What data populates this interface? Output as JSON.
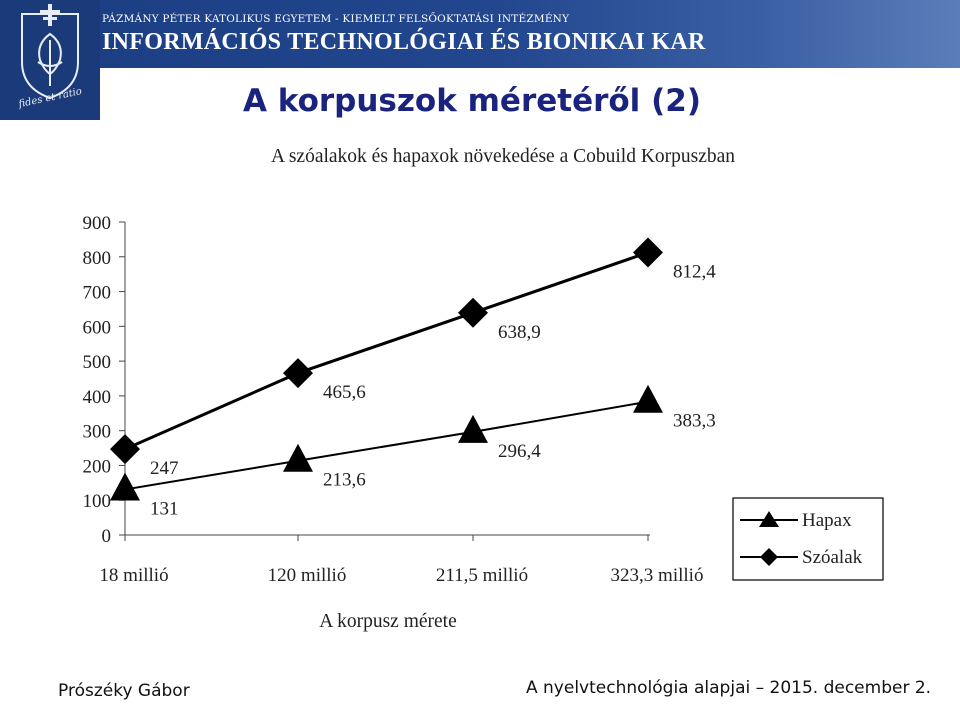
{
  "header": {
    "university": "PÁZMÁNY PÉTER KATOLIKUS EGYETEM - KIEMELT FELSŐOKTATÁSI INTÉZMÉNY",
    "faculty": "INFORMÁCIÓS TECHNOLÓGIAI ÉS BIONIKAI KAR",
    "logo_motto": "fides et ratio"
  },
  "slide": {
    "title": "A korpuszok méretéről (2)"
  },
  "footer": {
    "author": "Prószéky Gábor",
    "course": "A nyelvtechnológia alapjai – 2015. december 2."
  },
  "colors": {
    "banner": "#22478f",
    "title": "#1a237e",
    "series": "#000000"
  },
  "chart_data": {
    "type": "line",
    "title": "A szóalakok és hapaxok növekedése a Cobuild Korpuszban",
    "xlabel": "A korpusz mérete",
    "ylabel": "",
    "categories": [
      "18 millió",
      "120 millió",
      "211,5 millió",
      "323,3 millió"
    ],
    "yticks": [
      "0",
      "100",
      "200",
      "300",
      "400",
      "500",
      "600",
      "700",
      "800",
      "900"
    ],
    "ylim": [
      0,
      900
    ],
    "grid": false,
    "legend_position": "right",
    "series": [
      {
        "name": "Hapax",
        "marker": "triangle",
        "values": [
          131,
          213.6,
          296.4,
          383.3
        ],
        "labels": [
          "131",
          "213,6",
          "296,4",
          "383,3"
        ]
      },
      {
        "name": "Szóalak",
        "marker": "diamond",
        "values": [
          247,
          465.6,
          638.9,
          812.4
        ],
        "labels": [
          "247",
          "465,6",
          "638,9",
          "812,4"
        ]
      }
    ]
  }
}
